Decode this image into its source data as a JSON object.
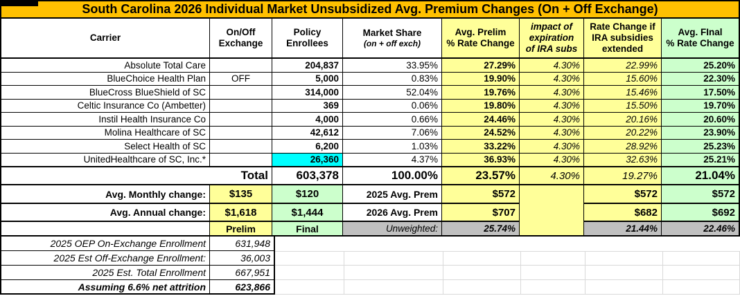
{
  "title": "South Carolina 2026 Individual Market Unsubsidized Avg. Premium Changes (On + Off Exchange)",
  "colors": {
    "title_bar": "#FFC000",
    "highlight_yellow": "#FFFF99",
    "highlight_green": "#CCFFCC",
    "highlight_cyan": "#00FFFF",
    "unweighted_gray": "#C0C0C0",
    "gridline_gray": "#D9D9D9"
  },
  "header": {
    "carrier": "Carrier",
    "exchange": [
      "On/Off",
      "Exchange"
    ],
    "enrollees": [
      "Policy",
      "Enrollees"
    ],
    "share": [
      "Market Share",
      "(on + off exch)"
    ],
    "prelim": [
      "Avg. Prelim",
      "% Rate Change"
    ],
    "impact": [
      "impact of",
      "expiration",
      "of IRA subs"
    ],
    "extended": [
      "Rate Change if",
      "IRA subsidies",
      "extended"
    ],
    "final": [
      "Avg. FInal",
      "% Rate Change"
    ]
  },
  "carriers": [
    {
      "carrier": "Absolute Total Care",
      "exchange": "",
      "enrollees": "204,837",
      "share": "33.95%",
      "prelim": "27.29%",
      "impact": "4.30%",
      "extended": "22.99%",
      "final": "25.20%",
      "highlight": false
    },
    {
      "carrier": "BlueChoice Health Plan",
      "exchange": "OFF",
      "enrollees": "5,000",
      "share": "0.83%",
      "prelim": "19.90%",
      "impact": "4.30%",
      "extended": "15.60%",
      "final": "22.30%",
      "highlight": false
    },
    {
      "carrier": "BlueCross BlueShield of SC",
      "exchange": "",
      "enrollees": "314,000",
      "share": "52.04%",
      "prelim": "19.76%",
      "impact": "4.30%",
      "extended": "15.46%",
      "final": "17.50%",
      "highlight": false
    },
    {
      "carrier": "Celtic Insurance Co (Ambetter)",
      "exchange": "",
      "enrollees": "369",
      "share": "0.06%",
      "prelim": "19.80%",
      "impact": "4.30%",
      "extended": "15.50%",
      "final": "19.70%",
      "highlight": false
    },
    {
      "carrier": "Instil Health Insurance Co",
      "exchange": "",
      "enrollees": "4,000",
      "share": "0.66%",
      "prelim": "24.46%",
      "impact": "4.30%",
      "extended": "20.16%",
      "final": "20.60%",
      "highlight": false
    },
    {
      "carrier": "Molina Healthcare of SC",
      "exchange": "",
      "enrollees": "42,612",
      "share": "7.06%",
      "prelim": "24.52%",
      "impact": "4.30%",
      "extended": "20.22%",
      "final": "23.90%",
      "highlight": false
    },
    {
      "carrier": "Select Health of SC",
      "exchange": "",
      "enrollees": "6,200",
      "share": "1.03%",
      "prelim": "33.22%",
      "impact": "4.30%",
      "extended": "28.92%",
      "final": "25.23%",
      "highlight": false
    },
    {
      "carrier": "UnitedHealthcare of SC, Inc.*",
      "exchange": "",
      "enrollees": "26,360",
      "share": "4.37%",
      "prelim": "36.93%",
      "impact": "4.30%",
      "extended": "32.63%",
      "final": "25.21%",
      "highlight": true
    }
  ],
  "total_row": {
    "label": "Total",
    "enrollees": "603,378",
    "share": "100.00%",
    "prelim": "23.57%",
    "impact": "4.30%",
    "extended": "19.27%",
    "final": "21.04%"
  },
  "monthly_row": {
    "label": "Avg. Monthly change:",
    "prelim_amt": "$135",
    "final_amt": "$120",
    "prem_label": "2025 Avg. Prem",
    "prelim_prem": "$572",
    "extended_prem": "$572",
    "final_prem": "$572"
  },
  "annual_row": {
    "label": "Avg. Annual change:",
    "prelim_amt": "$1,618",
    "final_amt": "$1,444",
    "prem_label": "2026 Avg. Prem",
    "prelim_prem": "$707",
    "extended_prem": "$682",
    "final_prem": "$692"
  },
  "legend_row": {
    "prelim": "Prelim",
    "final": "Final",
    "unweighted_label": "Unweighted:",
    "prelim_unweighted": "25.74%",
    "extended_unweighted": "21.44%",
    "final_unweighted": "22.46%"
  },
  "footer_rows": [
    {
      "label": "2025 OEP On-Exchange Enrollment",
      "value": "631,948",
      "bold": false
    },
    {
      "label": "2025 Est Off-Exchange Enrollment:",
      "value": "36,003",
      "bold": false
    },
    {
      "label": "2025 Est. Total Enrollment",
      "value": "667,951",
      "bold": false
    },
    {
      "label": "Assuming 6.6% net attrition",
      "value": "623,866",
      "bold": true
    }
  ]
}
